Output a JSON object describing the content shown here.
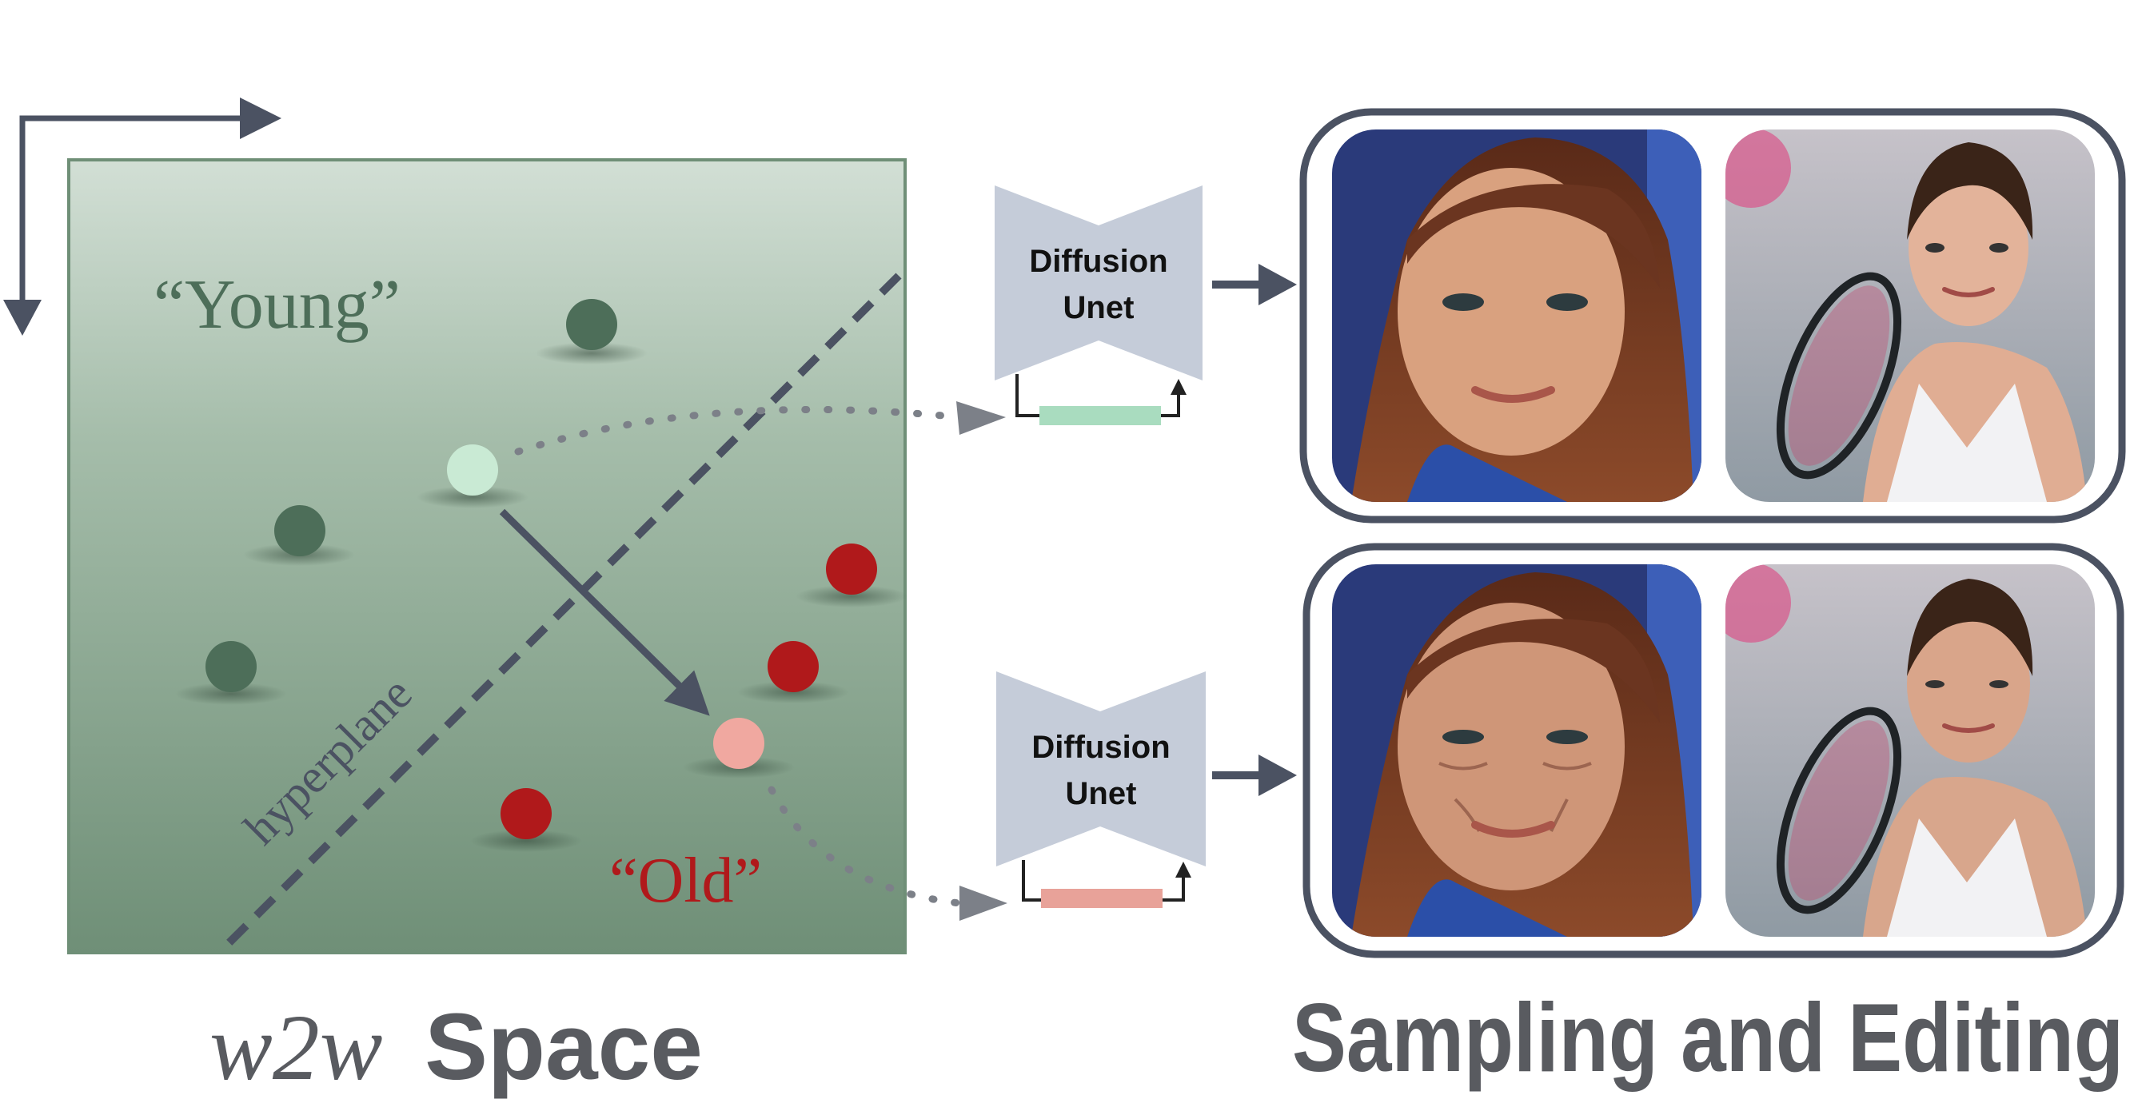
{
  "space_panel": {
    "young_label": "“Young”",
    "old_label": "“Old”",
    "hyperplane_label": "hyperplane",
    "colors": {
      "young_point": "#4d6e59",
      "old_point": "#b0191b",
      "selected_young": "#c9ead4",
      "edited_old": "#f0a8a0"
    }
  },
  "pipeline": [
    {
      "unet_label_line1": "Diffusion",
      "unet_label_line2": "Unet",
      "weight_bar_color": "#a9dcbf"
    },
    {
      "unet_label_line1": "Diffusion",
      "unet_label_line2": "Unet",
      "weight_bar_color": "#e8a299"
    }
  ],
  "results": [
    {
      "row": "young",
      "images": [
        "woman-portrait-young",
        "tennis-player-young"
      ]
    },
    {
      "row": "old",
      "images": [
        "woman-portrait-old",
        "tennis-player-old"
      ]
    }
  ],
  "captions": {
    "space_title_italic": "w2w",
    "space_title_rest": "Space",
    "right_title": "Sampling and Editing"
  }
}
